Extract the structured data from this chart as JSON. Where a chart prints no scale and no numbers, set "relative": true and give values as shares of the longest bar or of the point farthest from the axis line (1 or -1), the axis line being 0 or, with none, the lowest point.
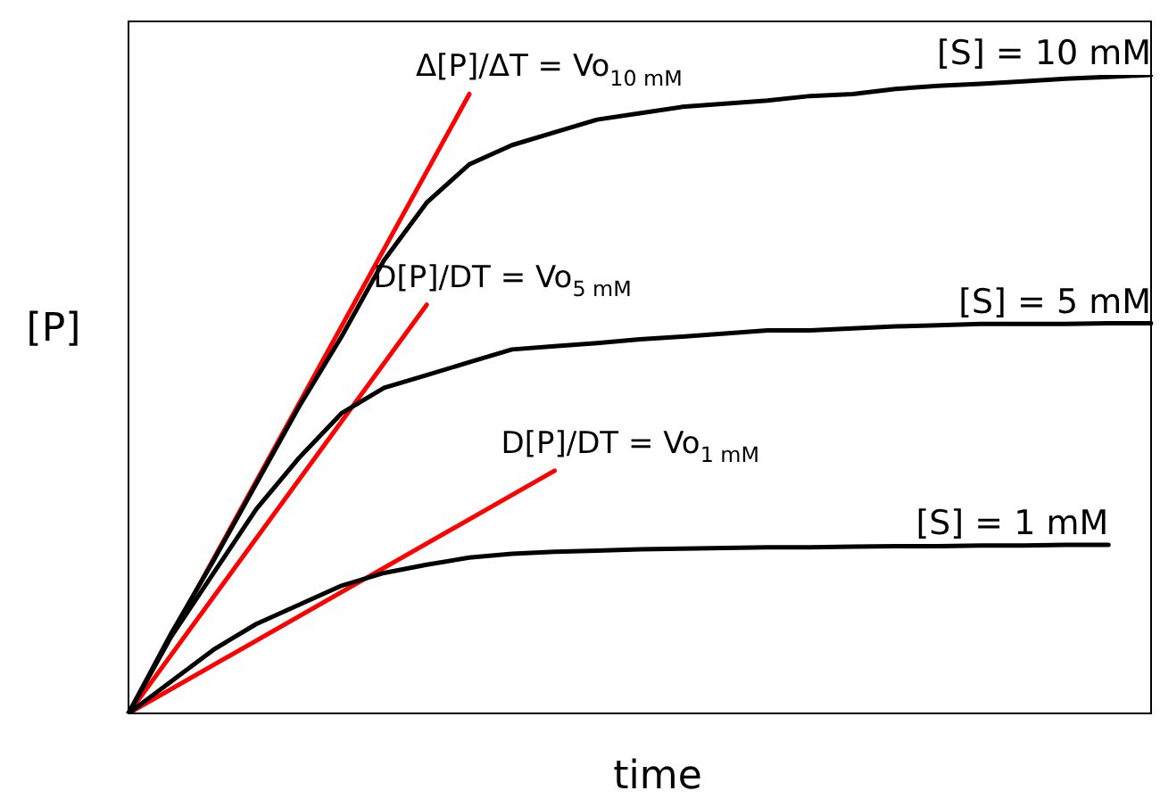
{
  "chart_data": {
    "type": "line",
    "relative": true,
    "xlabel": "time",
    "ylabel": "[P]",
    "legend": false,
    "marker": "none",
    "categories": [
      null,
      null,
      null,
      null,
      null,
      null,
      null,
      null,
      null,
      null,
      null,
      null,
      null,
      null,
      null,
      null,
      null,
      null,
      null,
      null,
      null,
      null,
      null,
      null,
      null
    ],
    "series": [
      {
        "name": "[S] = 10 mM",
        "color": "#000000",
        "values": [
          0,
          0.125,
          0.24,
          0.36,
          0.48,
          0.59,
          0.71,
          0.8,
          0.86,
          0.89,
          0.91,
          0.93,
          0.94,
          0.95,
          0.955,
          0.96,
          0.967,
          0.97,
          0.978,
          0.983,
          0.986,
          0.99,
          0.994,
          0.997,
          1
        ]
      },
      {
        "name": "[S] = 5 mM",
        "color": "#000000",
        "values": [
          0,
          0.12,
          0.22,
          0.32,
          0.4,
          0.47,
          0.51,
          0.53,
          0.55,
          0.57,
          0.575,
          0.58,
          0.586,
          0.59,
          0.595,
          0.6,
          0.6,
          0.603,
          0.606,
          0.608,
          0.61,
          0.61,
          0.61,
          0.611,
          0.611
        ]
      },
      {
        "name": "[S] = 1 mM",
        "color": "#000000",
        "values": [
          0,
          0.05,
          0.1,
          0.14,
          0.17,
          0.2,
          0.22,
          0.233,
          0.244,
          0.25,
          0.253,
          0.255,
          0.257,
          0.258,
          0.259,
          0.26,
          0.26,
          0.261,
          0.262,
          0.262,
          0.263,
          0.263,
          0.264,
          0.264,
          null
        ]
      },
      {
        "name": "Δ[P]/ΔT = Vo$_{10 mM}$",
        "color": "#ff0000",
        "values": [
          0,
          null,
          null,
          null,
          null,
          null,
          null,
          null,
          0.97,
          null,
          null,
          null,
          null,
          null,
          null,
          null,
          null,
          null,
          null,
          null,
          null,
          null,
          null,
          null,
          null
        ]
      },
      {
        "name": "D[P]/DT = Vo$_{5 mM}$",
        "color": "#ff0000",
        "values": [
          0,
          null,
          null,
          null,
          null,
          null,
          null,
          0.64,
          null,
          null,
          null,
          null,
          null,
          null,
          null,
          null,
          null,
          null,
          null,
          null,
          null,
          null,
          null,
          null,
          null
        ]
      },
      {
        "name": "D[P]/DT = Vo$_{1 mM}$",
        "color": "#ff0000",
        "values": [
          0,
          null,
          null,
          null,
          null,
          null,
          null,
          null,
          null,
          null,
          0.38,
          null,
          null,
          null,
          null,
          null,
          null,
          null,
          null,
          null,
          null,
          null,
          null,
          null,
          null
        ]
      }
    ]
  }
}
